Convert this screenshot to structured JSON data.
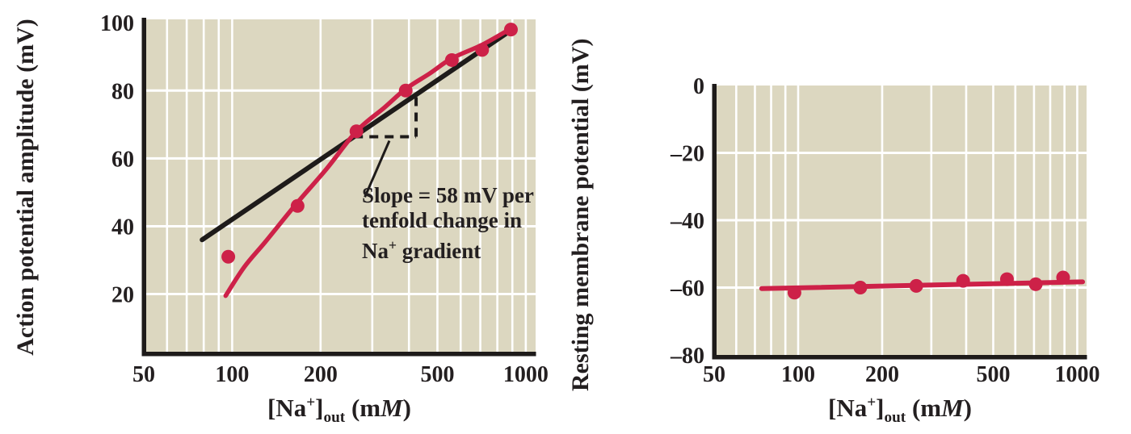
{
  "figure": {
    "description": "Two-panel figure: effect of external sodium concentration on squid axon action potential amplitude (left) and resting membrane potential (right)",
    "left_chart": {
      "ylabel_line1": "Action potential",
      "ylabel_line2": "amplitude (mV)"
    },
    "right_chart": {
      "ylabel_line1": "Resting membrane",
      "ylabel_line2": "potential (mV)"
    },
    "xlabel_parts": {
      "p1": "[Na",
      "sup": "+",
      "p2": "]",
      "sub": "out",
      "p3": " (m",
      "italic": "M",
      "p4": ")"
    },
    "annotation": {
      "line1": "Slope = 58 mV per",
      "line2": "tenfold change in",
      "line3_a": "Na",
      "line3_sup": "+",
      "line3_b": " gradient"
    }
  },
  "colors": {
    "background": "#ffffff",
    "plot_background": "#dcd7c0",
    "gridline": "#ffffff",
    "data_red": "#cd2148",
    "line_black": "#1e1b1a",
    "text": "#231f20"
  },
  "chart_data": [
    {
      "type": "scatter",
      "panel": "left",
      "title": "",
      "xlabel": "[Na+]out (mM)",
      "ylabel": "Action potential amplitude (mV)",
      "x_scale": "log",
      "xlim": [
        50,
        1080
      ],
      "ylim": [
        3,
        101
      ],
      "x_ticks": [
        50,
        100,
        200,
        500,
        1000
      ],
      "x_tick_labels": [
        "50",
        "100",
        "200",
        "500",
        "1000"
      ],
      "y_ticks": [
        100,
        80,
        60,
        40,
        20
      ],
      "y_tick_labels": [
        "100",
        "80",
        "60",
        "40",
        "20"
      ],
      "x_minor_gridlines": [
        60,
        70,
        80,
        90,
        100,
        200,
        300,
        400,
        500,
        600,
        700,
        800,
        900,
        1000
      ],
      "y_gridlines": [
        20,
        40,
        60,
        80
      ],
      "grid": true,
      "legend": "none",
      "points": {
        "x": [
          97,
          167,
          265,
          390,
          560,
          710,
          890
        ],
        "y": [
          31,
          46,
          68,
          80,
          89,
          92,
          98
        ]
      },
      "fit_curve": {
        "name": "observed amplitude curve",
        "x": [
          95,
          110,
          130,
          165,
          210,
          265,
          330,
          390,
          470,
          560,
          710,
          890
        ],
        "y": [
          19.5,
          28,
          35.5,
          46.5,
          57,
          68,
          75,
          80.5,
          85,
          89.5,
          93.5,
          98.3
        ]
      },
      "slope_line": {
        "name": "Nernst slope line",
        "slope_mV_per_decade": 58,
        "x": [
          79,
          880
        ],
        "y": [
          36,
          97.5
        ]
      },
      "slope_triangle": {
        "x_start": 260,
        "x_end": 423,
        "y_run": 66.4,
        "y_rise_top": 78.8
      },
      "annotation_pointer": {
        "from": [
          343,
          65.2
        ],
        "to": [
          283,
          48.6
        ]
      }
    },
    {
      "type": "scatter",
      "panel": "right",
      "title": "",
      "xlabel": "[Na+]out (mM)",
      "ylabel": "Resting membrane potential (mV)",
      "x_scale": "log",
      "xlim": [
        50,
        1080
      ],
      "ylim": [
        -80,
        0
      ],
      "x_ticks": [
        50,
        100,
        200,
        500,
        1000
      ],
      "x_tick_labels": [
        "50",
        "100",
        "200",
        "500",
        "1000"
      ],
      "y_ticks": [
        0,
        -20,
        -40,
        -60,
        -80
      ],
      "y_tick_labels": [
        "0",
        "–20",
        "–40",
        "–60",
        "–80"
      ],
      "x_minor_gridlines": [
        60,
        70,
        80,
        90,
        100,
        200,
        300,
        400,
        500,
        600,
        700,
        800,
        900,
        1000
      ],
      "y_gridlines": [
        -20,
        -40,
        -60
      ],
      "grid": true,
      "legend": "none",
      "points": {
        "x": [
          97,
          167,
          265,
          390,
          560,
          710,
          890
        ],
        "y": [
          -61.5,
          -60,
          -59.5,
          -58,
          -57.5,
          -59,
          -57
        ]
      },
      "trend_line": {
        "name": "resting potential trend",
        "x": [
          74,
          1045
        ],
        "y": [
          -60.3,
          -58.3
        ]
      }
    }
  ]
}
